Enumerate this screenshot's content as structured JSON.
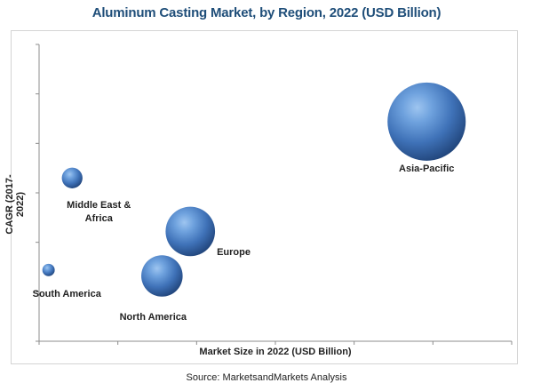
{
  "chart_data": {
    "type": "bubble",
    "title": "Aluminum Casting Market, by Region, 2022 (USD Billion)",
    "xlabel": "Market Size in 2022 (USD Billion)",
    "ylabel": "CAGR (2017-2022)",
    "source": "Source: MarketsandMarkets Analysis",
    "xlim": [
      0,
      100
    ],
    "ylim": [
      0,
      100
    ],
    "x_ticks": 7,
    "y_ticks": 7,
    "grid": false,
    "bubble_color": "#4a7fc1",
    "points": [
      {
        "label": "Asia-Pacific",
        "x": 82,
        "y": 74,
        "size": 100
      },
      {
        "label": "Middle East & Africa",
        "x": 7,
        "y": 55,
        "size": 7
      },
      {
        "label": "Europe",
        "x": 32,
        "y": 37,
        "size": 40
      },
      {
        "label": "North America",
        "x": 26,
        "y": 22,
        "size": 28
      },
      {
        "label": "South America",
        "x": 2,
        "y": 24,
        "size": 2.5
      }
    ]
  }
}
